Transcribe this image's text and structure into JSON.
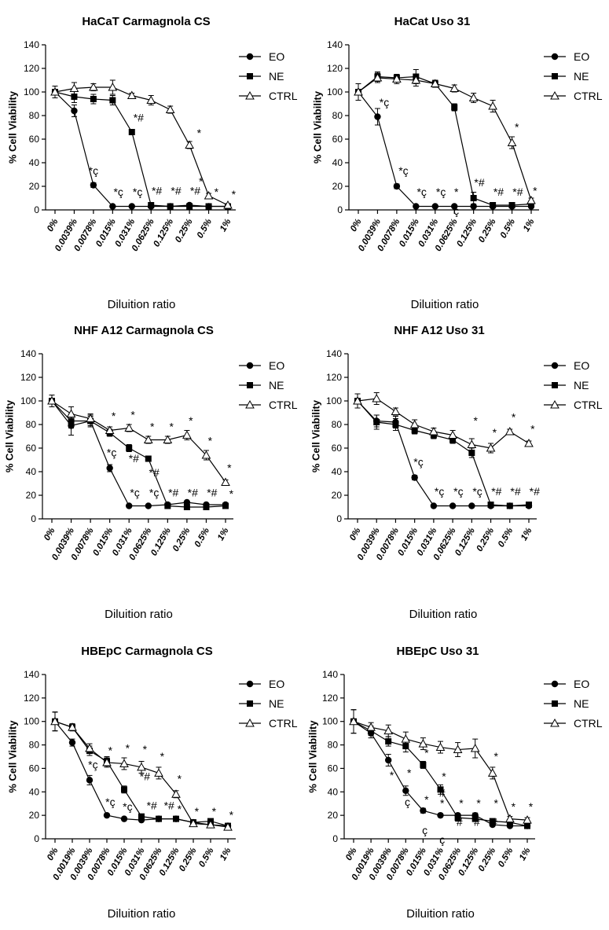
{
  "chart_data": [
    {
      "type": "line",
      "title": "HaCaT  Carmagnola CS",
      "ylabel": "% Cell Viability",
      "xlabel": "Diluition ratio",
      "ylim": [
        0,
        140
      ],
      "yticks": [
        0,
        20,
        40,
        60,
        80,
        100,
        120,
        140
      ],
      "categories": [
        "0%",
        "0.0039%",
        "0.0078%",
        "0.015%",
        "0.031%",
        "0.0625%",
        "0.125%",
        "0.25%",
        "0.5%",
        "1%"
      ],
      "legend": "right",
      "series": [
        {
          "name": "EO",
          "marker": "circle",
          "values": [
            100,
            84,
            21,
            3,
            3,
            3,
            3,
            4,
            3,
            3
          ],
          "errors": [
            5,
            5,
            2,
            1,
            1,
            1,
            1,
            1,
            1,
            1
          ]
        },
        {
          "name": "NE",
          "marker": "square",
          "values": [
            100,
            96,
            94,
            93,
            66,
            4,
            3,
            3,
            3,
            3
          ],
          "errors": [
            5,
            5,
            4,
            4,
            2,
            1,
            1,
            1,
            1,
            1
          ]
        },
        {
          "name": "CTRL",
          "marker": "triangle",
          "values": [
            100,
            103,
            104,
            104,
            97,
            93,
            85,
            55,
            12,
            4
          ],
          "errors": [
            5,
            5,
            3,
            6,
            2,
            4,
            3,
            3,
            2,
            1
          ]
        }
      ],
      "annotations": [
        {
          "text": "*ç",
          "x": 2,
          "y": 30
        },
        {
          "text": "*#",
          "x": 4.35,
          "y": 75
        },
        {
          "text": "*",
          "x": 7.5,
          "y": 62
        },
        {
          "text": "*ç",
          "x": 3.3,
          "y": 12
        },
        {
          "text": "*ç",
          "x": 4.3,
          "y": 12
        },
        {
          "text": "*#",
          "x": 5.3,
          "y": 13
        },
        {
          "text": "*#",
          "x": 6.3,
          "y": 13
        },
        {
          "text": "*#",
          "x": 7.3,
          "y": 13
        },
        {
          "text": "*",
          "x": 7.6,
          "y": 21
        },
        {
          "text": "*",
          "x": 8.4,
          "y": 12
        },
        {
          "text": "*",
          "x": 9.3,
          "y": 10
        }
      ]
    },
    {
      "type": "line",
      "title": "HaCat Uso 31",
      "ylabel": "% Cell Viability",
      "xlabel": "Diluition ratio",
      "ylim": [
        0,
        140
      ],
      "yticks": [
        0,
        20,
        40,
        60,
        80,
        100,
        120,
        140
      ],
      "categories": [
        "0%",
        "0.0039%",
        "0.0078%",
        "0.015%",
        "0.031%",
        "0.0625%",
        "0.125%",
        "0.25%",
        "0.5%",
        "1%"
      ],
      "legend": "right",
      "series": [
        {
          "name": "EO",
          "marker": "circle",
          "values": [
            100,
            79,
            20,
            3,
            3,
            3,
            3,
            3,
            3,
            3
          ],
          "errors": [
            7,
            7,
            2,
            1,
            1,
            1,
            1,
            1,
            1,
            1
          ]
        },
        {
          "name": "NE",
          "marker": "square",
          "values": [
            100,
            113,
            112,
            113,
            107,
            87,
            10,
            4,
            4,
            5
          ],
          "errors": [
            7,
            4,
            3,
            6,
            3,
            3,
            5,
            1,
            1,
            1
          ]
        },
        {
          "name": "CTRL",
          "marker": "triangle",
          "values": [
            100,
            112,
            111,
            110,
            107,
            103,
            95,
            88,
            57,
            8
          ],
          "errors": [
            7,
            4,
            4,
            5,
            3,
            3,
            4,
            5,
            5,
            2
          ]
        }
      ],
      "annotations": [
        {
          "text": "*ç",
          "x": 1.35,
          "y": 88
        },
        {
          "text": "*ç",
          "x": 2.35,
          "y": 30
        },
        {
          "text": "*ç",
          "x": 3.3,
          "y": 12
        },
        {
          "text": "*ç",
          "x": 4.3,
          "y": 12
        },
        {
          "text": "*",
          "x": 5.1,
          "y": 12
        },
        {
          "text": "ç",
          "x": 5.1,
          "y": -4
        },
        {
          "text": "*#",
          "x": 6.3,
          "y": 20
        },
        {
          "text": "*#",
          "x": 7.3,
          "y": 12
        },
        {
          "text": "*#",
          "x": 8.3,
          "y": 12
        },
        {
          "text": "*",
          "x": 8.25,
          "y": 67
        },
        {
          "text": "*",
          "x": 9.2,
          "y": 13
        }
      ]
    },
    {
      "type": "line",
      "title": "NHF A12 Carmagnola CS",
      "ylabel": "% Cell Viability",
      "xlabel": "Diluition ratio",
      "ylim": [
        0,
        140
      ],
      "yticks": [
        0,
        20,
        40,
        60,
        80,
        100,
        120,
        140
      ],
      "categories": [
        "0%",
        "0.0039%",
        "0.0078%",
        "0.015%",
        "0.031%",
        "0.0625%",
        "0.125%",
        "0.25%",
        "0.5%",
        "1%"
      ],
      "legend": "right",
      "series": [
        {
          "name": "EO",
          "marker": "circle",
          "values": [
            100,
            79,
            83,
            43,
            11,
            11,
            12,
            14,
            12,
            12
          ],
          "errors": [
            5,
            8,
            5,
            3,
            1,
            1,
            1,
            1,
            1,
            1
          ]
        },
        {
          "name": "NE",
          "marker": "square",
          "values": [
            100,
            83,
            83,
            73,
            60,
            51,
            11,
            10,
            10,
            11
          ],
          "errors": [
            5,
            6,
            4,
            3,
            3,
            2,
            1,
            1,
            1,
            1
          ]
        },
        {
          "name": "CTRL",
          "marker": "triangle",
          "values": [
            100,
            89,
            85,
            75,
            77,
            67,
            67,
            71,
            54,
            31
          ],
          "errors": [
            5,
            6,
            4,
            3,
            3,
            3,
            3,
            4,
            4,
            2
          ]
        }
      ],
      "annotations": [
        {
          "text": "*ç",
          "x": 3.1,
          "y": 53
        },
        {
          "text": "*#",
          "x": 4.25,
          "y": 48
        },
        {
          "text": "*#",
          "x": 5.3,
          "y": 36
        },
        {
          "text": "*ç",
          "x": 4.3,
          "y": 19
        },
        {
          "text": "*ç",
          "x": 5.3,
          "y": 19
        },
        {
          "text": "*#",
          "x": 6.3,
          "y": 19
        },
        {
          "text": "*#",
          "x": 7.3,
          "y": 19
        },
        {
          "text": "*#",
          "x": 8.3,
          "y": 19
        },
        {
          "text": "*",
          "x": 9.3,
          "y": 18
        },
        {
          "text": "*",
          "x": 3.2,
          "y": 84
        },
        {
          "text": "*",
          "x": 4.2,
          "y": 85
        },
        {
          "text": "*",
          "x": 5.2,
          "y": 75
        },
        {
          "text": "*",
          "x": 6.2,
          "y": 75
        },
        {
          "text": "*",
          "x": 7.2,
          "y": 80
        },
        {
          "text": "*",
          "x": 8.2,
          "y": 63
        },
        {
          "text": "*",
          "x": 9.2,
          "y": 40
        }
      ]
    },
    {
      "type": "line",
      "title": "NHF A12 Uso 31",
      "ylabel": "% Cell Viability",
      "xlabel": "Diluition ratio",
      "ylim": [
        0,
        140
      ],
      "yticks": [
        0,
        20,
        40,
        60,
        80,
        100,
        120,
        140
      ],
      "categories": [
        "0%",
        "0.0039%",
        "0.0078%",
        "0.015%",
        "0.031%",
        "0.0625%",
        "0.125%",
        "0.25%",
        "0.5%",
        "1%"
      ],
      "legend": "right",
      "series": [
        {
          "name": "EO",
          "marker": "circle",
          "values": [
            100,
            83,
            82,
            35,
            11,
            11,
            11,
            11,
            11,
            11
          ],
          "errors": [
            6,
            5,
            5,
            2,
            1,
            1,
            1,
            1,
            1,
            1
          ]
        },
        {
          "name": "NE",
          "marker": "square",
          "values": [
            100,
            82,
            80,
            75,
            71,
            67,
            56,
            12,
            11,
            12
          ],
          "errors": [
            6,
            6,
            5,
            3,
            3,
            3,
            4,
            1,
            1,
            1
          ]
        },
        {
          "name": "CTRL",
          "marker": "triangle",
          "values": [
            100,
            102,
            91,
            80,
            74,
            71,
            63,
            60,
            74,
            64
          ],
          "errors": [
            6,
            5,
            3,
            4,
            3,
            4,
            5,
            4,
            2,
            2
          ]
        }
      ],
      "annotations": [
        {
          "text": "*ç",
          "x": 3.2,
          "y": 45
        },
        {
          "text": "*ç",
          "x": 4.3,
          "y": 20
        },
        {
          "text": "*ç",
          "x": 5.3,
          "y": 20
        },
        {
          "text": "*ç",
          "x": 6.3,
          "y": 20
        },
        {
          "text": "*#",
          "x": 7.3,
          "y": 20
        },
        {
          "text": "*#",
          "x": 8.3,
          "y": 20
        },
        {
          "text": "*#",
          "x": 9.3,
          "y": 20
        },
        {
          "text": "*",
          "x": 6.2,
          "y": 80
        },
        {
          "text": "*",
          "x": 7.2,
          "y": 70
        },
        {
          "text": "*",
          "x": 8.2,
          "y": 83
        },
        {
          "text": "*",
          "x": 9.2,
          "y": 73
        }
      ]
    },
    {
      "type": "line",
      "title": "HBEpC Carmagnola CS",
      "ylabel": "% Cell Viability",
      "xlabel": "Diluition ratio",
      "ylim": [
        0,
        140
      ],
      "yticks": [
        0,
        20,
        40,
        60,
        80,
        100,
        120,
        140
      ],
      "categories": [
        "0%",
        "0.0019%",
        "0.0039%",
        "0.0078%",
        "0.015%",
        "0.031%",
        "0.0625%",
        "0.125%",
        "0.25%",
        "0.5%",
        "1%"
      ],
      "legend": "right",
      "series": [
        {
          "name": "EO",
          "marker": "circle",
          "values": [
            100,
            82,
            50,
            20,
            17,
            16,
            17,
            17,
            14,
            12,
            11
          ],
          "errors": [
            8,
            3,
            4,
            1,
            1,
            1,
            1,
            1,
            1,
            1,
            1
          ]
        },
        {
          "name": "NE",
          "marker": "square",
          "values": [
            100,
            95,
            75,
            66,
            42,
            19,
            17,
            17,
            14,
            15,
            11
          ],
          "errors": [
            8,
            3,
            4,
            4,
            3,
            2,
            1,
            1,
            1,
            2,
            1
          ]
        },
        {
          "name": "CTRL",
          "marker": "triangle",
          "values": [
            100,
            95,
            77,
            65,
            64,
            61,
            56,
            38,
            13,
            12,
            10
          ],
          "errors": [
            8,
            3,
            4,
            4,
            5,
            5,
            5,
            3,
            2,
            2,
            2
          ]
        }
      ],
      "annotations": [
        {
          "text": "*ç",
          "x": 2.2,
          "y": 60
        },
        {
          "text": "*ç",
          "x": 3.2,
          "y": 28
        },
        {
          "text": "*ç",
          "x": 4.2,
          "y": 24
        },
        {
          "text": "*#",
          "x": 5.2,
          "y": 50
        },
        {
          "text": "*#",
          "x": 5.6,
          "y": 25
        },
        {
          "text": "*#",
          "x": 6.6,
          "y": 25
        },
        {
          "text": "*",
          "x": 3.2,
          "y": 72
        },
        {
          "text": "*",
          "x": 4.2,
          "y": 74
        },
        {
          "text": "*",
          "x": 5.2,
          "y": 73
        },
        {
          "text": "*",
          "x": 6.2,
          "y": 67
        },
        {
          "text": "*",
          "x": 7.2,
          "y": 48
        },
        {
          "text": "*",
          "x": 7.2,
          "y": 22
        },
        {
          "text": "*",
          "x": 8.2,
          "y": 20
        },
        {
          "text": "*",
          "x": 9.2,
          "y": 20
        },
        {
          "text": "*",
          "x": 10.2,
          "y": 17
        }
      ]
    },
    {
      "type": "line",
      "title": "HBEpC Uso 31",
      "ylabel": "% Cell Viability",
      "xlabel": "Diluition ratio",
      "ylim": [
        0,
        140
      ],
      "yticks": [
        0,
        20,
        40,
        60,
        80,
        100,
        120,
        140
      ],
      "categories": [
        "0%",
        "0.0019%",
        "0.0039%",
        "0.0078%",
        "0.015%",
        "0.031%",
        "0.0625%",
        "0.125%",
        "0.25%",
        "0.5%",
        "1%"
      ],
      "legend": "right",
      "series": [
        {
          "name": "EO",
          "marker": "circle",
          "values": [
            100,
            90,
            67,
            41,
            24,
            20,
            20,
            20,
            12,
            11,
            11
          ],
          "errors": [
            10,
            4,
            5,
            4,
            2,
            1,
            1,
            2,
            1,
            1,
            1
          ]
        },
        {
          "name": "NE",
          "marker": "square",
          "values": [
            100,
            92,
            83,
            79,
            63,
            42,
            18,
            17,
            15,
            14,
            11
          ],
          "errors": [
            10,
            4,
            4,
            5,
            3,
            4,
            3,
            2,
            2,
            2,
            1
          ]
        },
        {
          "name": "CTRL",
          "marker": "triangle",
          "values": [
            100,
            95,
            92,
            85,
            81,
            78,
            76,
            77,
            56,
            17,
            16
          ],
          "errors": [
            10,
            4,
            5,
            6,
            5,
            5,
            6,
            8,
            5,
            2,
            2
          ]
        }
      ],
      "annotations": [
        {
          "text": "*",
          "x": 2.2,
          "y": 51
        },
        {
          "text": "*",
          "x": 3.2,
          "y": 53
        },
        {
          "text": "ç",
          "x": 3.1,
          "y": 28
        },
        {
          "text": "*",
          "x": 4.2,
          "y": 30
        },
        {
          "text": "ç",
          "x": 4.1,
          "y": 4
        },
        {
          "text": "*",
          "x": 4.2,
          "y": 70
        },
        {
          "text": "*",
          "x": 5.2,
          "y": 50
        },
        {
          "text": "*",
          "x": 5.1,
          "y": 27
        },
        {
          "text": "ç",
          "x": 5.1,
          "y": -4
        },
        {
          "text": "#",
          "x": 5.1,
          "y": 36
        },
        {
          "text": "*",
          "x": 6.2,
          "y": 27
        },
        {
          "text": "#",
          "x": 6.1,
          "y": 11
        },
        {
          "text": "*",
          "x": 7.2,
          "y": 27
        },
        {
          "text": "#",
          "x": 7.1,
          "y": 11
        },
        {
          "text": "*",
          "x": 8.2,
          "y": 27
        },
        {
          "text": "#",
          "x": 8.1,
          "y": 11
        },
        {
          "text": "*",
          "x": 8.2,
          "y": 67
        },
        {
          "text": "*",
          "x": 9.2,
          "y": 24
        },
        {
          "text": "*",
          "x": 10.2,
          "y": 24
        }
      ]
    }
  ]
}
